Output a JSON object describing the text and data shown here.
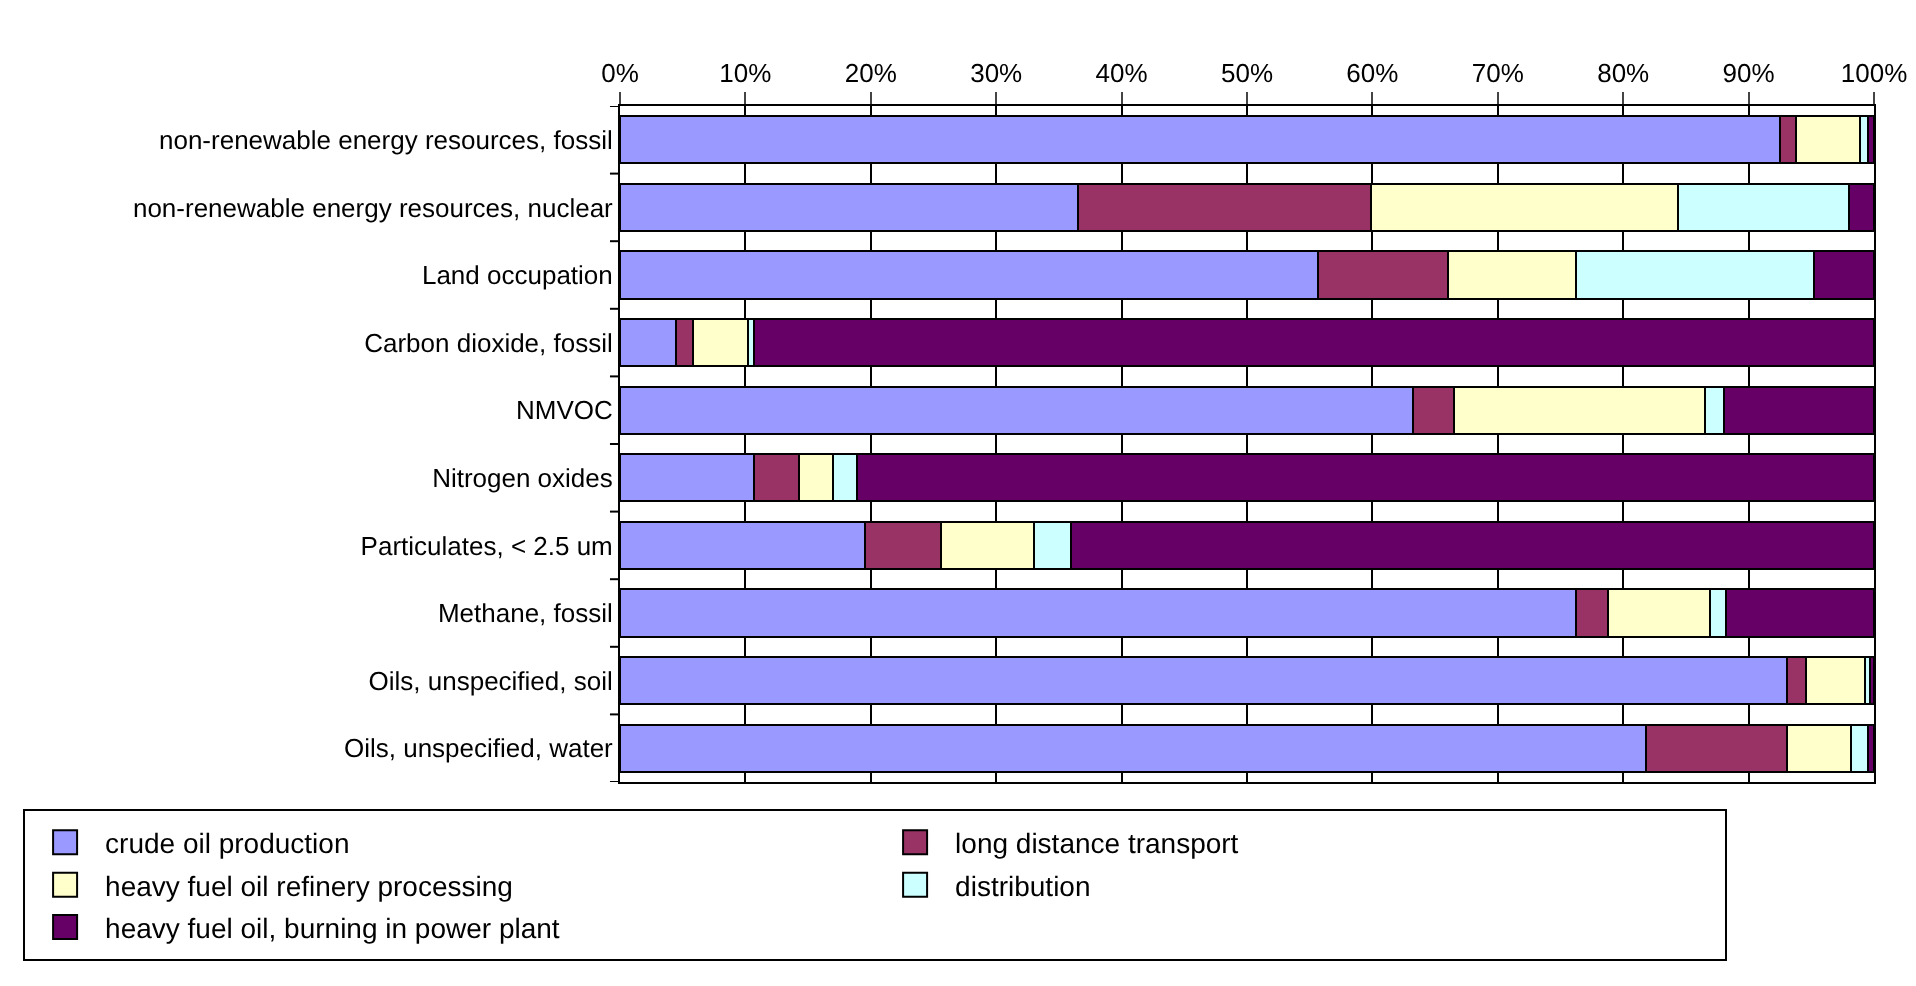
{
  "chart_data": {
    "type": "bar",
    "orientation": "horizontal",
    "stacked": true,
    "categories": [
      "non-renewable energy resources, fossil",
      "non-renewable energy resources, nuclear",
      "Land occupation",
      "Carbon dioxide, fossil",
      "NMVOC",
      "Nitrogen oxides",
      "Particulates, < 2.5 um",
      "Methane, fossil",
      "Oils, unspecified, soil",
      "Oils, unspecified, water"
    ],
    "series": [
      {
        "name": "crude oil production",
        "color": "#9999ff",
        "values": [
          92.5,
          36.5,
          55.7,
          4.5,
          63.2,
          10.7,
          19.5,
          76.2,
          93.1,
          81.8
        ]
      },
      {
        "name": "long distance transport",
        "color": "#993366",
        "values": [
          1.3,
          23.4,
          10.3,
          1.3,
          3.3,
          3.6,
          6.1,
          2.6,
          1.5,
          11.3
        ]
      },
      {
        "name": "heavy fuel oil refinery processing",
        "color": "#ffffcc",
        "values": [
          5.1,
          24.5,
          10.2,
          4.4,
          20.0,
          2.7,
          7.4,
          8.1,
          4.7,
          5.1
        ]
      },
      {
        "name": "distribution",
        "color": "#ccffff",
        "values": [
          0.6,
          13.6,
          19.0,
          0.5,
          1.5,
          1.9,
          3.0,
          1.3,
          0.4,
          1.3
        ]
      },
      {
        "name": "heavy fuel oil, burning in power plant",
        "color": "#660066",
        "values": [
          0.5,
          2.0,
          4.8,
          89.3,
          12.0,
          81.1,
          64.0,
          11.8,
          0.3,
          0.5
        ]
      }
    ],
    "xlim": [
      0,
      100
    ],
    "xticks": [
      {
        "value": 0,
        "label": "0%"
      },
      {
        "value": 10,
        "label": "10%"
      },
      {
        "value": 20,
        "label": "20%"
      },
      {
        "value": 30,
        "label": "30%"
      },
      {
        "value": 40,
        "label": "40%"
      },
      {
        "value": 50,
        "label": "50%"
      },
      {
        "value": 60,
        "label": "60%"
      },
      {
        "value": 70,
        "label": "70%"
      },
      {
        "value": 80,
        "label": "80%"
      },
      {
        "value": 90,
        "label": "90%"
      },
      {
        "value": 100,
        "label": "100%"
      }
    ],
    "grid": "x",
    "legend": "bottom"
  }
}
